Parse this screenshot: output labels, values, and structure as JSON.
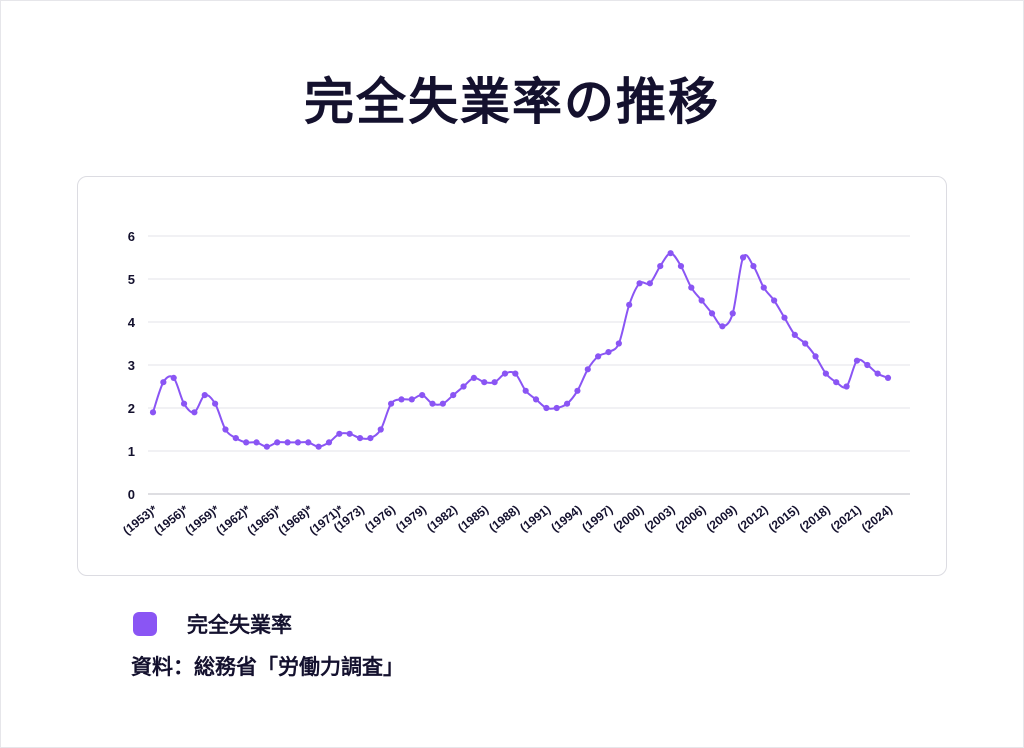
{
  "title": "完全失業率の推移",
  "legend": {
    "label": "完全失業率",
    "color": "#8a55f4"
  },
  "source": "資料：総務省「労働力調査」",
  "chart_data": {
    "type": "line",
    "title": "完全失業率の推移",
    "xlabel": "",
    "ylabel": "",
    "ylim": [
      0,
      6
    ],
    "yticks": [
      0,
      1,
      2,
      3,
      4,
      5,
      6
    ],
    "grid": true,
    "legend_position": "bottom-left",
    "series": [
      {
        "name": "完全失業率",
        "color": "#8a55f4",
        "x": [
          1953,
          1954,
          1955,
          1956,
          1957,
          1958,
          1959,
          1960,
          1961,
          1962,
          1963,
          1964,
          1965,
          1966,
          1967,
          1968,
          1969,
          1970,
          1971,
          1972,
          1973,
          1974,
          1975,
          1976,
          1977,
          1978,
          1979,
          1980,
          1981,
          1982,
          1983,
          1984,
          1985,
          1986,
          1987,
          1988,
          1989,
          1990,
          1991,
          1992,
          1993,
          1994,
          1995,
          1996,
          1997,
          1998,
          1999,
          2000,
          2001,
          2002,
          2003,
          2004,
          2005,
          2006,
          2007,
          2008,
          2009,
          2010,
          2011,
          2012,
          2013,
          2014,
          2015,
          2016,
          2017,
          2018,
          2019,
          2020,
          2021,
          2022,
          2023,
          2024
        ],
        "values": [
          1.9,
          2.6,
          2.7,
          2.1,
          1.9,
          2.3,
          2.1,
          1.5,
          1.3,
          1.2,
          1.2,
          1.1,
          1.2,
          1.2,
          1.2,
          1.2,
          1.1,
          1.2,
          1.4,
          1.4,
          1.3,
          1.3,
          1.5,
          2.1,
          2.2,
          2.2,
          2.3,
          2.1,
          2.1,
          2.3,
          2.5,
          2.7,
          2.6,
          2.6,
          2.8,
          2.8,
          2.4,
          2.2,
          2.0,
          2.0,
          2.1,
          2.4,
          2.9,
          3.2,
          3.3,
          3.5,
          4.4,
          4.9,
          4.9,
          5.3,
          5.6,
          5.3,
          4.8,
          4.5,
          4.2,
          3.9,
          4.2,
          5.5,
          5.3,
          4.8,
          4.5,
          4.1,
          3.7,
          3.5,
          3.2,
          2.8,
          2.6,
          2.5,
          3.1,
          3.0,
          2.8,
          2.7
        ]
      }
    ],
    "x_tick_labels": [
      "(1953)*",
      "(1956)*",
      "(1959)*",
      "(1962)*",
      "(1965)*",
      "(1968)*",
      "(1971)*",
      "(1973)",
      "(1976)",
      "(1979)",
      "(1982)",
      "(1985)",
      "(1988)",
      "(1991)",
      "(1994)",
      "(1997)",
      "(2000)",
      "(2003)",
      "(2006)",
      "(2009)",
      "(2012)",
      "(2015)",
      "(2018)",
      "(2021)",
      "(2024)"
    ]
  }
}
